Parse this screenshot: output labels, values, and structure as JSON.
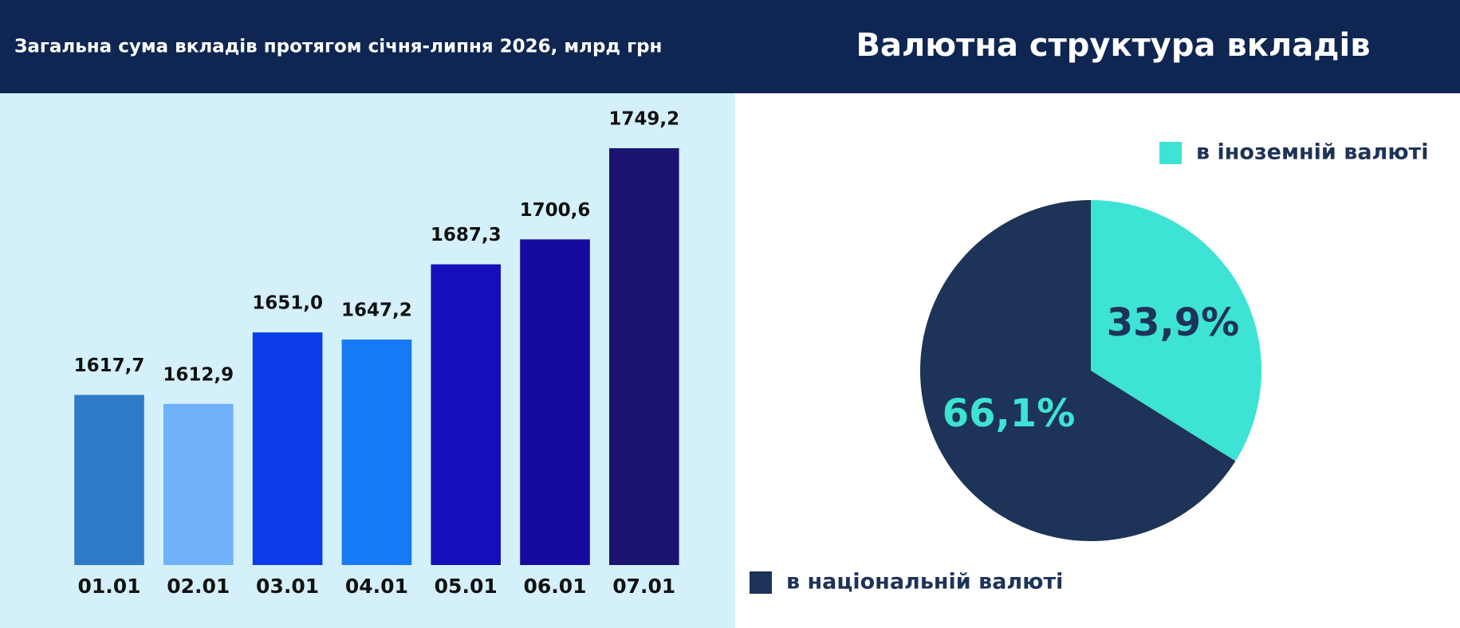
{
  "chart_data": [
    {
      "type": "bar",
      "title": "Загальна сума вкладів протягом січня-липня 2026, млрд грн",
      "categories": [
        "01.01",
        "02.01",
        "03.01",
        "04.01",
        "05.01",
        "06.01",
        "07.01"
      ],
      "values": [
        1617.7,
        1612.9,
        1651.0,
        1647.2,
        1687.3,
        1700.6,
        1749.2
      ],
      "value_labels": [
        "1617,7",
        "1612,9",
        "1651,0",
        "1647,2",
        "1687,3",
        "1700,6",
        "1749,2"
      ],
      "colors": [
        "#2e7ac9",
        "#6fb1fb",
        "#0b3de8",
        "#1679f5",
        "#150fbb",
        "#160a9f",
        "#1b1571"
      ],
      "ylim": [
        1527,
        1770
      ]
    },
    {
      "type": "pie",
      "title": "Валютна структура вкладів",
      "categories": [
        "в іноземній валюті",
        "в національній валюті"
      ],
      "values": [
        33.9,
        66.1
      ],
      "value_labels": [
        "33,9%",
        "66,1%"
      ],
      "colors": [
        "#3de3d4",
        "#1e3358"
      ]
    }
  ]
}
